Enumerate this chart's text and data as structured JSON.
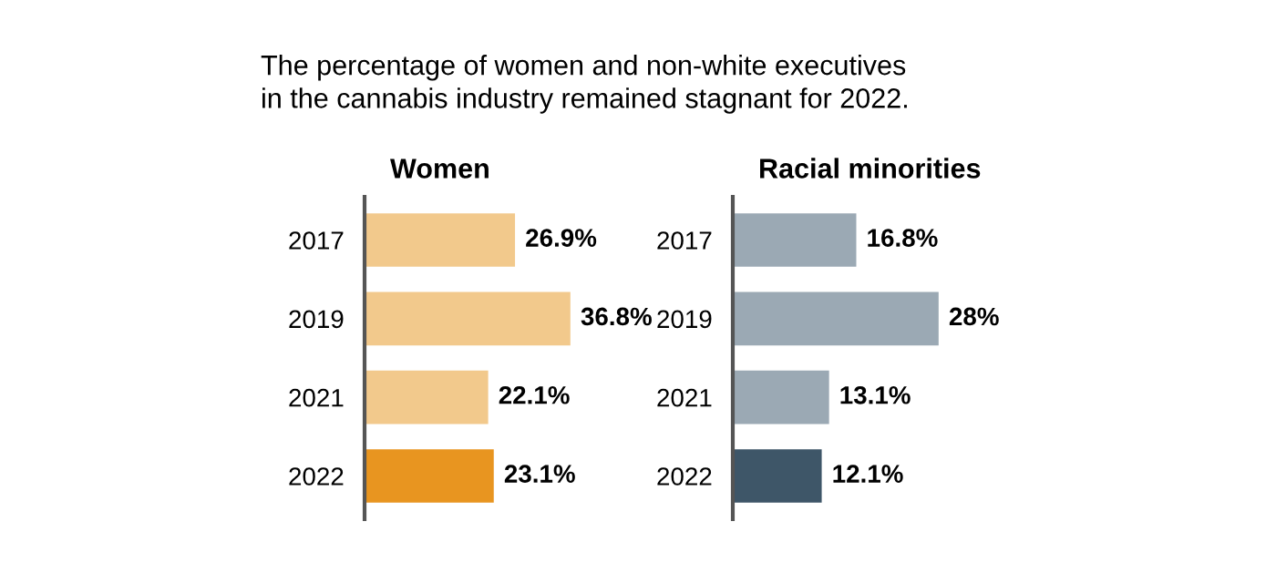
{
  "chart_data": [
    {
      "type": "bar",
      "orientation": "horizontal",
      "title": "Women",
      "annotations": [
        "The percentage of women and non-white executives\nin the cannabis industry remained stagnant for 2022."
      ],
      "categories": [
        "2017",
        "2019",
        "2021",
        "2022"
      ],
      "values": [
        26.9,
        36.8,
        22.1,
        23.1
      ],
      "colors": [
        "#f2c98c",
        "#f2c98c",
        "#f2c98c",
        "#e89520"
      ],
      "value_labels": [
        "26.9%",
        "36.8%",
        "22.1%",
        "23.1%"
      ]
    },
    {
      "type": "bar",
      "orientation": "horizontal",
      "title": "Racial minorities",
      "categories": [
        "2017",
        "2019",
        "2021",
        "2022"
      ],
      "values": [
        16.8,
        28,
        13.1,
        12.1
      ],
      "colors": [
        "#9ba9b4",
        "#9ba9b4",
        "#9ba9b4",
        "#3e5668"
      ],
      "value_labels": [
        "16.8%",
        "28%",
        "13.1%",
        "12.1%"
      ]
    }
  ]
}
